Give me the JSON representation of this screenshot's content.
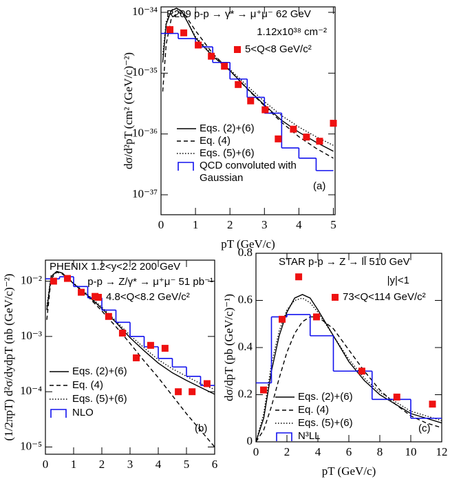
{
  "chart_data": [
    {
      "type": "line",
      "ylog": true,
      "xlabel": "pT (GeV/c)",
      "ylabel": "dσ/d²pT (cm² (GeV/c)⁻²)",
      "xlim": [
        0,
        5.05
      ],
      "ylim": [
        4.7e-38,
        1.23e-34
      ],
      "xticks": [
        0,
        1,
        2,
        3,
        4,
        5
      ],
      "yticks": [
        {
          "value": 1e-37,
          "label": "10⁻³⁷"
        },
        {
          "value": 1e-36,
          "label": "10⁻³⁶"
        },
        {
          "value": 1e-35,
          "label": "10⁻³⁵"
        },
        {
          "value": 1e-34,
          "label": "10⁻³⁴"
        }
      ],
      "annotations": [
        "R209  p-p → γ* → μ⁺μ⁻  62 GeV",
        "1.12x10³⁸ cm⁻²",
        "(a)"
      ],
      "series": [
        {
          "name": "5<Q<8 GeV/c²",
          "kind": "points",
          "color": "#ee1111",
          "x": [
            0.26,
            0.66,
            1.08,
            1.46,
            1.84,
            2.24,
            2.6,
            3.02,
            3.4,
            3.84,
            4.22,
            4.6,
            5.0
          ],
          "values": [
            5.2e-35,
            4.6e-35,
            2.9e-35,
            1.9e-35,
            1.3e-35,
            6.5e-36,
            3.5e-36,
            2.5e-36,
            8.3e-37,
            1.2e-36,
            8.9e-37,
            7.6e-37,
            1.5e-36
          ]
        },
        {
          "name": "Eqs. (2)+(6)",
          "kind": "line",
          "dash": "solid",
          "color": "#000000",
          "x": [
            0.05,
            0.15,
            0.3,
            0.45,
            0.6,
            0.8,
            1.0,
            1.5,
            2,
            2.5,
            3,
            3.5,
            4,
            4.5,
            5
          ],
          "values": [
            1.5e-35,
            6.4e-35,
            1.07e-34,
            1.17e-34,
            1.05e-34,
            6.4e-35,
            3.8e-35,
            1.9e-35,
            1.1e-35,
            5.6e-36,
            3e-36,
            1.67e-36,
            1.07e-36,
            7.3e-37,
            5.2e-37
          ]
        },
        {
          "name": "Eq. (4)",
          "kind": "line",
          "dash": "dashed",
          "color": "#000000",
          "x": [
            0.05,
            0.15,
            0.3,
            0.5,
            0.7,
            1.0,
            1.5,
            2,
            2.5,
            3,
            3.5,
            4,
            4.5,
            5
          ],
          "values": [
            5e-36,
            3e-35,
            8e-35,
            1e-34,
            9e-35,
            5e-35,
            2.1e-35,
            1.1e-35,
            5.5e-36,
            2.9e-36,
            1.55e-36,
            9e-37,
            5.8e-37,
            4e-37
          ]
        },
        {
          "name": "Eqs. (5)+(6)",
          "kind": "line",
          "dash": "dotted",
          "color": "#000000",
          "x": [
            0.05,
            0.15,
            0.3,
            0.45,
            0.6,
            0.8,
            1.0,
            1.5,
            2,
            2.5,
            3,
            3.5,
            4,
            4.5,
            5
          ],
          "values": [
            2e-35,
            7e-35,
            1.1e-34,
            1.15e-34,
            1e-34,
            6.5e-35,
            4e-35,
            2e-35,
            1.15e-35,
            6.2e-36,
            3.4e-36,
            2e-36,
            1.3e-36,
            9e-37,
            6.5e-37
          ]
        },
        {
          "name": "QCD convoluted with Gaussian",
          "kind": "step",
          "color": "#1010ee",
          "bins": [
            0,
            0.5,
            1,
            1.5,
            2,
            2.5,
            3,
            3.5,
            4,
            4.5,
            5
          ],
          "values": [
            4.5e-35,
            3.7e-35,
            2.7e-35,
            1.5e-35,
            8e-36,
            4e-36,
            2.2e-36,
            5.9e-37,
            4e-37,
            2.5e-37
          ]
        }
      ]
    },
    {
      "type": "line",
      "ylog": true,
      "xlabel": "pT (GeV/c)",
      "ylabel": "(1/2πpT) d²σ/dydpT (nb (GeV/c)⁻²)",
      "xlim": [
        0,
        6
      ],
      "ylim": [
        7.4e-06,
        0.024
      ],
      "xticks": [
        0,
        1,
        2,
        3,
        4,
        5,
        6
      ],
      "yticks": [
        {
          "value": 1e-05,
          "label": "10⁻⁵"
        },
        {
          "value": 0.0001,
          "label": "10⁻⁴"
        },
        {
          "value": 0.001,
          "label": "10⁻³"
        },
        {
          "value": 0.01,
          "label": "10⁻²"
        }
      ],
      "annotations": [
        "PHENIX  1.2<y<2.2    200 GeV",
        "p-p → Z/γ* → μ⁺μ⁻ 51 pb⁻¹",
        "(b)"
      ],
      "series": [
        {
          "name": "4.8<Q<8.2 GeV/c²",
          "kind": "points",
          "color": "#ee1111",
          "x": [
            0.29,
            0.78,
            1.27,
            1.76,
            2.24,
            2.73,
            3.22,
            3.73,
            4.24,
            4.71,
            5.2,
            5.73
          ],
          "values": [
            0.01,
            0.0112,
            0.0063,
            0.0053,
            0.0023,
            0.00115,
            0.00041,
            0.00069,
            0.00061,
            0.0001,
            0.0001,
            0.00014
          ]
        },
        {
          "name": "Eqs. (2)+(6)",
          "kind": "line",
          "dash": "solid",
          "color": "#000000",
          "x": [
            0.05,
            0.2,
            0.4,
            0.6,
            1,
            1.5,
            2,
            2.5,
            3,
            3.5,
            4,
            4.5,
            5,
            5.5,
            6
          ],
          "values": [
            0.003,
            0.012,
            0.015,
            0.014,
            0.009,
            0.0055,
            0.0032,
            0.0018,
            0.00095,
            0.00055,
            0.00033,
            0.00022,
            0.00016,
            0.00012,
            9e-05
          ]
        },
        {
          "name": "Eq. (4)",
          "kind": "line",
          "dash": "dashed",
          "color": "#000000",
          "x": [
            0.05,
            0.2,
            0.4,
            0.6,
            1,
            1.5,
            2,
            2.5,
            3,
            3.5,
            4,
            4.5,
            5,
            5.5,
            6
          ],
          "values": [
            0.002,
            0.011,
            0.0145,
            0.0135,
            0.009,
            0.0053,
            0.0029,
            0.0015,
            0.00075,
            0.00036,
            0.00018,
            8.5e-05,
            4e-05,
            2e-05,
            1e-05
          ]
        },
        {
          "name": "Eqs. (5)+(6)",
          "kind": "line",
          "dash": "dotted",
          "color": "#000000",
          "x": [
            0.05,
            0.2,
            0.4,
            0.6,
            1,
            1.5,
            2,
            2.5,
            3,
            3.5,
            4,
            4.5,
            5,
            5.5,
            6
          ],
          "values": [
            0.0035,
            0.0125,
            0.015,
            0.014,
            0.0092,
            0.0057,
            0.0034,
            0.0019,
            0.00105,
            0.00062,
            0.00038,
            0.00026,
            0.00019,
            0.00014,
            0.00011
          ]
        },
        {
          "name": "NLO",
          "kind": "step",
          "color": "#1010ee",
          "bins": [
            0,
            0.5,
            1,
            1.5,
            2,
            2.5,
            3,
            3.5,
            4,
            4.5,
            5,
            5.5,
            6
          ],
          "values": [
            0.011,
            0.012,
            0.008,
            0.005,
            0.003,
            0.0018,
            0.001,
            0.00065,
            0.0004,
            0.00028,
            0.00019,
            0.00013
          ]
        }
      ]
    },
    {
      "type": "line",
      "ylog": false,
      "xlabel": "pT (GeV/c)",
      "ylabel": "dσ/dpT (pb (GeV/c)⁻¹)",
      "xlim": [
        0,
        12
      ],
      "ylim": [
        0,
        0.8
      ],
      "xticks": [
        0,
        2,
        4,
        6,
        8,
        10,
        12
      ],
      "yticks": [
        0,
        0.2,
        0.4,
        0.6,
        0.8
      ],
      "annotations": [
        "STAR  p-p → Z → ll̄  510 GeV",
        "|y|<1",
        "(c)"
      ],
      "series": [
        {
          "name": "73<Q<114 GeV/c²",
          "kind": "points",
          "color": "#ee1111",
          "x": [
            0.49,
            1.69,
            2.76,
            3.91,
            6.84,
            9.1,
            11.4
          ],
          "values": [
            0.22,
            0.52,
            0.7,
            0.53,
            0.3,
            0.19,
            0.16
          ]
        },
        {
          "name": "Eqs. (2)+(6)",
          "kind": "line",
          "dash": "solid",
          "color": "#000000",
          "x": [
            0,
            0.5,
            1,
            1.5,
            2,
            2.5,
            3,
            3.5,
            4,
            5,
            6,
            7,
            8,
            9,
            10,
            11,
            12
          ],
          "values": [
            0,
            0.1,
            0.3,
            0.45,
            0.55,
            0.61,
            0.625,
            0.61,
            0.56,
            0.45,
            0.34,
            0.26,
            0.2,
            0.16,
            0.12,
            0.1,
            0.08
          ]
        },
        {
          "name": "Eq. (4)",
          "kind": "line",
          "dash": "dashed",
          "color": "#000000",
          "x": [
            0,
            0.5,
            1,
            1.5,
            2,
            2.5,
            3,
            3.5,
            4,
            5,
            6,
            7,
            8,
            9,
            10,
            11,
            12
          ],
          "values": [
            0,
            0.05,
            0.15,
            0.27,
            0.38,
            0.46,
            0.51,
            0.53,
            0.53,
            0.48,
            0.39,
            0.3,
            0.22,
            0.16,
            0.11,
            0.08,
            0.06
          ]
        },
        {
          "name": "Eqs. (5)+(6)",
          "kind": "line",
          "dash": "dotted",
          "color": "#000000",
          "x": [
            0,
            0.5,
            1,
            1.5,
            2,
            2.5,
            3,
            3.5,
            4,
            5,
            6,
            7,
            8,
            9,
            10,
            11,
            12
          ],
          "values": [
            0,
            0.12,
            0.33,
            0.47,
            0.56,
            0.6,
            0.61,
            0.59,
            0.55,
            0.45,
            0.35,
            0.27,
            0.21,
            0.17,
            0.13,
            0.11,
            0.09
          ]
        },
        {
          "name": "N³LL",
          "kind": "step",
          "color": "#1010ee",
          "bins": [
            0,
            1,
            2,
            3.5,
            5,
            7.5,
            10,
            12
          ],
          "values": [
            0.25,
            0.53,
            0.54,
            0.45,
            0.3,
            0.18,
            0.1
          ]
        }
      ]
    }
  ]
}
